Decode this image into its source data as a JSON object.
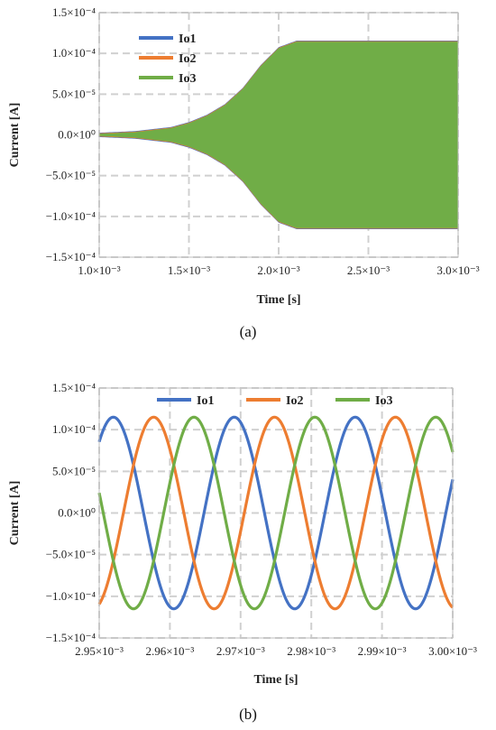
{
  "colors": {
    "Io1": "#4472C4",
    "Io2": "#ED7D31",
    "Io3": "#70AD47",
    "grid": "#d0d0d0",
    "axis": "#bfbfbf"
  },
  "chart_data": [
    {
      "panel": "(a)",
      "type": "line",
      "xlabel": "Time [s]",
      "ylabel": "Current [A]",
      "xlim": [
        0.001,
        0.003
      ],
      "ylim": [
        -0.00015,
        0.00015
      ],
      "x_ticks": [
        0.001,
        0.0015,
        0.002,
        0.0025,
        0.003
      ],
      "x_tick_labels": [
        "1.0×10⁻³",
        "1.5×10⁻³",
        "2.0×10⁻³",
        "2.5×10⁻³",
        "3.0×10⁻³"
      ],
      "y_ticks": [
        0.00015,
        0.0001,
        5e-05,
        0,
        -5e-05,
        -0.0001,
        -0.00015
      ],
      "y_tick_labels": [
        "1.5×10⁻⁴",
        "1.0×10⁻⁴",
        "5.0×10⁻⁵",
        "0.0×10⁰",
        "−5.0×10⁻⁵",
        "−1.0×10⁻⁴",
        "−1.5×10⁻⁴"
      ],
      "grid": true,
      "legend_position": "top-left",
      "envelope": {
        "t": [
          0.001,
          0.0012,
          0.0014,
          0.0015,
          0.0016,
          0.0017,
          0.0018,
          0.0019,
          0.002,
          0.0021,
          0.0025,
          0.003
        ],
        "amplitude": [
          2e-06,
          4e-06,
          9e-06,
          1.5e-05,
          2.4e-05,
          3.7e-05,
          5.7e-05,
          8.5e-05,
          0.000107,
          0.000115,
          0.000115,
          0.000115
        ]
      },
      "series": [
        {
          "name": "Io1",
          "color": "#4472C4"
        },
        {
          "name": "Io2",
          "color": "#ED7D31"
        },
        {
          "name": "Io3",
          "color": "#70AD47"
        }
      ]
    },
    {
      "panel": "(b)",
      "type": "line",
      "xlabel": "Time [s]",
      "ylabel": "Current [A]",
      "xlim": [
        0.00295,
        0.003
      ],
      "ylim": [
        -0.00015,
        0.00015
      ],
      "x_ticks": [
        0.00295,
        0.00296,
        0.00297,
        0.00298,
        0.00299,
        0.003
      ],
      "x_tick_labels": [
        "2.95×10⁻³",
        "2.96×10⁻³",
        "2.97×10⁻³",
        "2.98×10⁻³",
        "2.99×10⁻³",
        "3.00×10⁻³"
      ],
      "y_ticks": [
        0.00015,
        0.0001,
        5e-05,
        0,
        -5e-05,
        -0.0001,
        -0.00015
      ],
      "y_tick_labels": [
        "1.5×10⁻⁴",
        "1.0×10⁻⁴",
        "5.0×10⁻⁵",
        "0.0×10⁰",
        "−5.0×10⁻⁵",
        "−1.0×10⁻⁴",
        "−1.5×10⁻⁴"
      ],
      "grid": true,
      "legend_position": "top",
      "amplitude": 0.000115,
      "period": 1.71e-05,
      "series": [
        {
          "name": "Io1",
          "color": "#4472C4",
          "peak_time": 0.002952
        },
        {
          "name": "Io2",
          "color": "#ED7D31",
          "peak_time": 0.0029577
        },
        {
          "name": "Io3",
          "color": "#70AD47",
          "peak_time": 0.0029634
        }
      ]
    }
  ],
  "captions": {
    "a": "(a)",
    "b": "(b)"
  }
}
